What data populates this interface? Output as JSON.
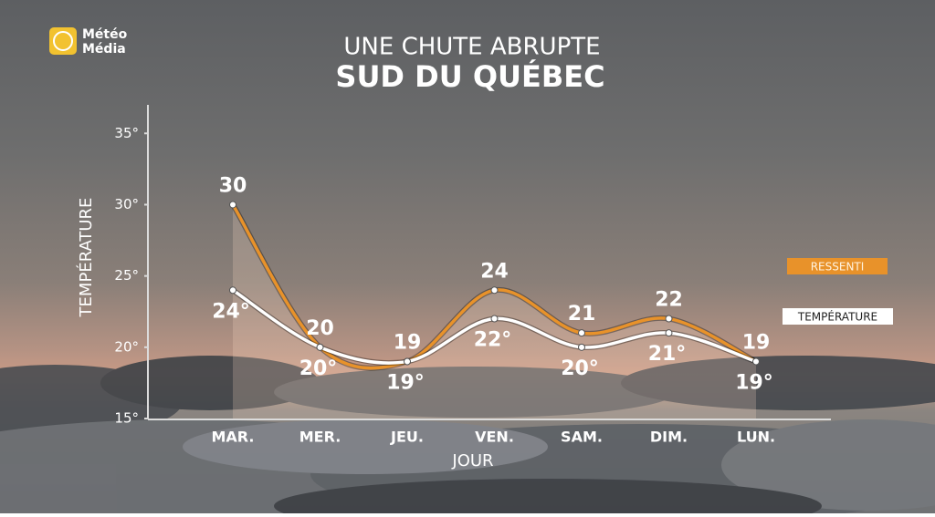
{
  "brand": [
    "Météo",
    "Média"
  ],
  "chart_data": {
    "type": "line",
    "title": "UNE CHUTE ABRUPTE",
    "subtitle": "SUD DU QUÉBEC",
    "x_label": "JOUR",
    "y_label": "TEMPÉRATURE",
    "categories": [
      "MAR.",
      "MER.",
      "JEU.",
      "VEN.",
      "SAM.",
      "DIM.",
      "LUN."
    ],
    "series": [
      {
        "name": "RESSENTI",
        "color": "#e8922a",
        "values": [
          30,
          20,
          19,
          24,
          21,
          22,
          19
        ]
      },
      {
        "name": "TEMPÉRATURE",
        "color": "#ffffff",
        "values": [
          24,
          20,
          19,
          22,
          20,
          21,
          19
        ],
        "value_labels": [
          "24°",
          "20°",
          "19°",
          "22°",
          "20°",
          "21°",
          "19°"
        ]
      }
    ],
    "ylim": [
      15,
      37
    ],
    "yticks": [
      {
        "value": 15,
        "label": "15°"
      },
      {
        "value": 20,
        "label": "20°"
      },
      {
        "value": 25,
        "label": "25°"
      },
      {
        "value": 30,
        "label": "30°"
      },
      {
        "value": 35,
        "label": "35°"
      }
    ],
    "smooth": true
  }
}
